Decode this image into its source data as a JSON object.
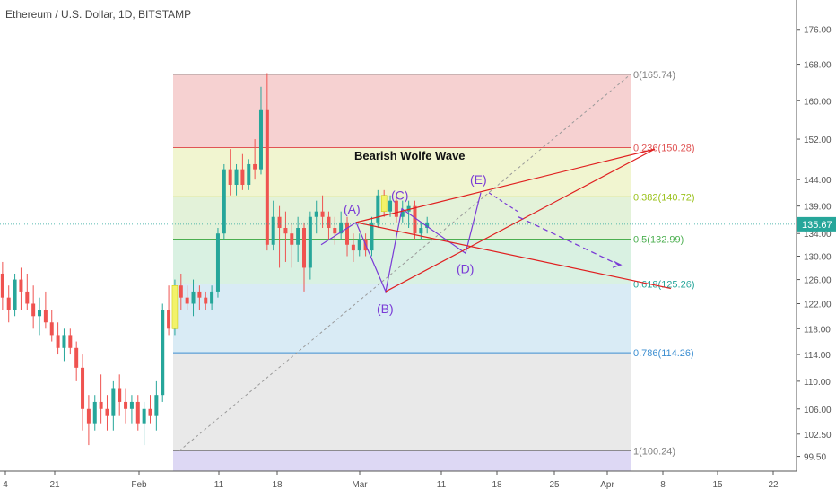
{
  "chart_title": "Ethereum / U.S. Dollar, 1D, BITSTAMP",
  "last_price_label": "135.67",
  "annotation_title": "Bearish Wolfe Wave",
  "chart_data": {
    "type": "candlestick",
    "title": "Ethereum / U.S. Dollar, 1D, BITSTAMP",
    "symbol": "ETHUSD",
    "timeframe": "1D",
    "exchange": "BITSTAMP",
    "y_axis": {
      "scale": "log",
      "range": [
        98.5,
        180
      ],
      "ticks": [
        99.5,
        102.5,
        106,
        110,
        114,
        118,
        122,
        126,
        130,
        134,
        139,
        144,
        152,
        160,
        168,
        176
      ]
    },
    "x_axis": {
      "ticks": [
        "4",
        "21",
        "Feb",
        "11",
        "18",
        "Mar",
        "11",
        "18",
        "25",
        "Apr",
        "8",
        "15",
        "22"
      ]
    },
    "last_price": 135.67,
    "candles": [
      [
        124,
        131,
        122,
        127
      ],
      [
        127,
        129,
        121,
        123
      ],
      [
        123,
        125,
        119,
        121
      ],
      [
        121,
        127,
        120,
        126
      ],
      [
        126,
        128,
        121,
        124
      ],
      [
        124,
        127,
        121,
        122
      ],
      [
        122,
        125,
        118,
        120
      ],
      [
        120,
        123,
        117,
        121
      ],
      [
        121,
        124,
        118,
        119
      ],
      [
        119,
        121,
        116,
        117
      ],
      [
        117,
        119,
        114,
        115
      ],
      [
        115,
        118,
        113,
        117
      ],
      [
        117,
        118,
        114,
        115
      ],
      [
        115,
        116,
        110,
        112
      ],
      [
        112,
        114,
        103,
        106
      ],
      [
        106,
        108,
        101,
        104
      ],
      [
        104,
        108,
        103,
        107
      ],
      [
        107,
        111,
        104,
        106
      ],
      [
        106,
        108,
        103,
        105
      ],
      [
        105,
        110,
        103,
        109
      ],
      [
        109,
        111,
        105,
        107
      ],
      [
        107,
        109,
        104,
        106
      ],
      [
        106,
        108,
        104,
        107
      ],
      [
        107,
        108,
        103,
        104
      ],
      [
        104,
        107,
        101,
        106
      ],
      [
        106,
        108,
        104,
        105
      ],
      [
        105,
        110,
        103,
        108
      ],
      [
        108,
        122,
        107,
        121
      ],
      [
        121,
        125,
        117,
        118
      ],
      [
        118,
        126,
        117,
        125
      ],
      [
        125,
        127,
        121,
        123
      ],
      [
        123,
        125,
        121,
        122
      ],
      [
        122,
        126,
        120,
        124
      ],
      [
        124,
        125,
        121,
        123
      ],
      [
        123,
        124,
        121,
        122
      ],
      [
        122,
        125,
        121,
        124
      ],
      [
        124,
        135,
        123,
        134
      ],
      [
        134,
        147,
        133,
        146
      ],
      [
        146,
        150,
        141,
        143
      ],
      [
        143,
        147,
        141,
        146
      ],
      [
        146,
        149,
        142,
        143
      ],
      [
        143,
        148,
        142,
        147
      ],
      [
        147,
        152,
        144,
        146
      ],
      [
        146,
        163,
        145,
        158
      ],
      [
        158,
        166,
        131,
        132
      ],
      [
        132,
        140,
        131,
        137
      ],
      [
        137,
        139,
        128,
        135
      ],
      [
        135,
        138,
        129,
        134
      ],
      [
        134,
        136,
        128,
        132
      ],
      [
        132,
        137,
        129,
        135
      ],
      [
        135,
        136,
        124,
        128
      ],
      [
        128,
        138,
        126,
        137
      ],
      [
        137,
        140,
        134,
        138
      ],
      [
        138,
        141,
        135,
        137
      ],
      [
        137,
        138,
        133,
        135
      ],
      [
        135,
        137,
        132,
        134
      ],
      [
        134,
        138,
        133,
        136
      ],
      [
        136,
        137,
        130,
        132
      ],
      [
        132,
        134,
        129,
        131
      ],
      [
        131,
        134,
        130,
        133
      ],
      [
        133,
        134,
        130,
        131
      ],
      [
        131,
        137,
        130,
        136
      ],
      [
        136,
        142,
        135,
        141
      ],
      [
        141,
        142,
        137,
        138
      ],
      [
        138,
        141,
        137,
        140
      ],
      [
        140,
        141,
        136,
        137
      ],
      [
        137,
        140,
        136,
        138
      ],
      [
        138,
        140,
        135,
        139
      ],
      [
        139,
        140,
        133,
        134
      ],
      [
        134,
        136,
        133,
        135
      ],
      [
        135,
        137,
        134,
        136
      ]
    ],
    "fibonacci": [
      {
        "ratio": "0",
        "price": 165.74,
        "label": "0(165.74)",
        "color": "#808080"
      },
      {
        "ratio": "0.236",
        "price": 150.28,
        "label": "0.236(150.28)",
        "color": "#e05555"
      },
      {
        "ratio": "0.382",
        "price": 140.72,
        "label": "0.382(140.72)",
        "color": "#9bc21d"
      },
      {
        "ratio": "0.5",
        "price": 132.99,
        "label": "0.5(132.99)",
        "color": "#4caf50"
      },
      {
        "ratio": "0.618",
        "price": 125.26,
        "label": "0.618(125.26)",
        "color": "#26a69a"
      },
      {
        "ratio": "0.786",
        "price": 114.26,
        "label": "0.786(114.26)",
        "color": "#3d8fd1"
      },
      {
        "ratio": "1",
        "price": 100.24,
        "label": "1(100.24)",
        "color": "#808080"
      }
    ],
    "wave_points": [
      {
        "label": "(A)",
        "price": 136.0
      },
      {
        "label": "(B)",
        "price": 124.0
      },
      {
        "label": "(C)",
        "price": 138.5
      },
      {
        "label": "(D)",
        "price": 130.5
      },
      {
        "label": "(E)",
        "price": 141.5
      }
    ],
    "colors": {
      "up": "#26a69a",
      "down": "#ef5350",
      "wave": "#7a3bd6",
      "trendline": "#e02020",
      "highlight": "#f2f26a"
    }
  }
}
